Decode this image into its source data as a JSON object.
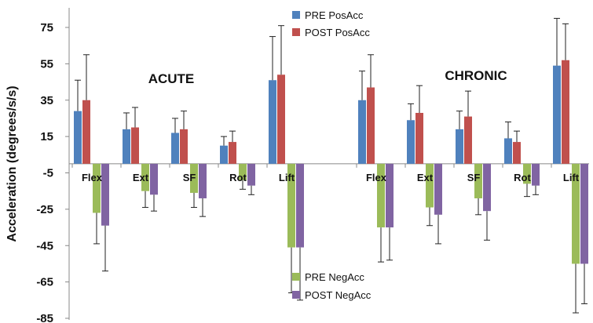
{
  "chart_data": {
    "type": "bar",
    "ylabel": "Acceleration (degrees/s/s)",
    "ylim": [
      -85,
      85
    ],
    "yticks": [
      75,
      55,
      35,
      15,
      -5,
      -25,
      -45,
      -65,
      -85
    ],
    "grid": false,
    "groups": [
      {
        "name": "ACUTE",
        "categories": [
          "Flex",
          "Ext",
          "SF",
          "Rot",
          "Lift"
        ]
      },
      {
        "name": "CHRONIC",
        "categories": [
          "Flex",
          "Ext",
          "SF",
          "Rot",
          "Lift"
        ]
      }
    ],
    "series": [
      {
        "name": "PRE PosAcc",
        "color": "#4F81BD",
        "values": [
          29,
          19,
          17,
          10,
          46,
          35,
          24,
          19,
          14,
          54
        ],
        "errors": [
          17,
          9,
          8,
          5,
          24,
          16,
          9,
          10,
          9,
          26
        ]
      },
      {
        "name": "POST PosAcc",
        "color": "#C0504D",
        "values": [
          35,
          20,
          19,
          12,
          49,
          42,
          28,
          26,
          12,
          57
        ],
        "errors": [
          25,
          11,
          10,
          6,
          27,
          18,
          15,
          14,
          6,
          20
        ]
      },
      {
        "name": "PRE NegAcc",
        "color": "#9BBB59",
        "values": [
          -27,
          -15,
          -16,
          -9,
          -46,
          -35,
          -24,
          -19,
          -11,
          -55
        ],
        "errors": [
          17,
          9,
          8,
          5,
          25,
          19,
          10,
          9,
          7,
          27
        ]
      },
      {
        "name": "POST NegAcc",
        "color": "#8064A2",
        "values": [
          -34,
          -17,
          -19,
          -12,
          -46,
          -35,
          -28,
          -26,
          -12,
          -55
        ],
        "errors": [
          25,
          9,
          10,
          5,
          29,
          18,
          16,
          16,
          5,
          22
        ]
      }
    ],
    "legend": {
      "positive_placement": "top-center",
      "negative_placement": "bottom-center"
    }
  }
}
